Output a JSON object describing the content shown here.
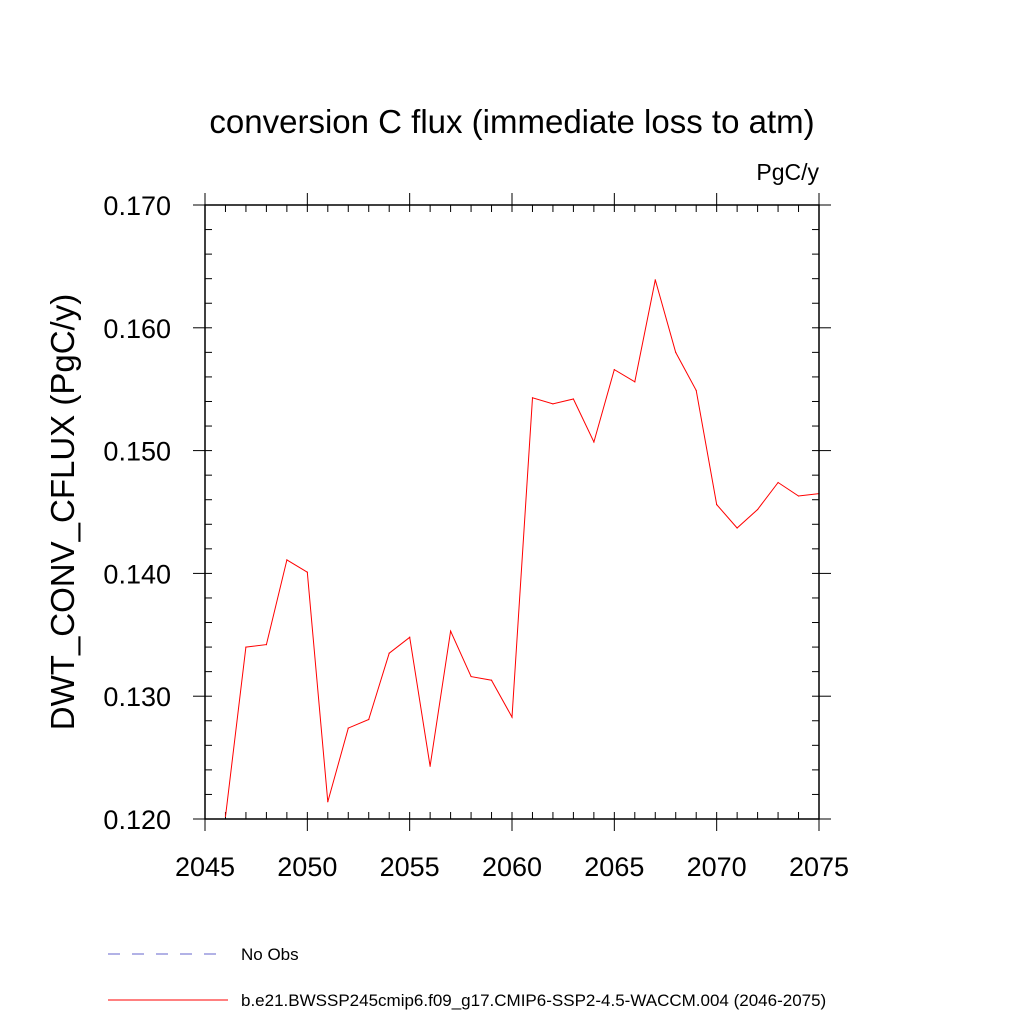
{
  "chart_data": {
    "type": "line",
    "title": "conversion C flux (immediate loss to atm)",
    "units_label": "PgC/y",
    "ylabel": "DWT_CONV_CFLUX  (PgC/y)",
    "xlabel": "",
    "xlim": [
      2045,
      2075
    ],
    "ylim": [
      0.12,
      0.17
    ],
    "x_ticks": [
      2045,
      2050,
      2055,
      2060,
      2065,
      2070,
      2075
    ],
    "x_tick_labels": [
      "2045",
      "2050",
      "2055",
      "2060",
      "2065",
      "2070",
      "2075"
    ],
    "y_ticks": [
      0.12,
      0.13,
      0.14,
      0.15,
      0.16,
      0.17
    ],
    "y_tick_labels": [
      "0.120",
      "0.130",
      "0.140",
      "0.150",
      "0.160",
      "0.170"
    ],
    "grid": false,
    "legend_position": "bottom-left",
    "series": [
      {
        "name": "b.e21.BWSSP245cmip6.f09_g17.CMIP6-SSP2-4.5-WACCM.004 (2046-2075)",
        "color": "#ff0000",
        "line_style": "solid",
        "x": [
          2046,
          2047,
          2048,
          2049,
          2050,
          2051,
          2052,
          2053,
          2054,
          2055,
          2056,
          2057,
          2058,
          2059,
          2060,
          2061,
          2062,
          2063,
          2064,
          2065,
          2066,
          2067,
          2068,
          2069,
          2070,
          2071,
          2072,
          2073,
          2074,
          2075
        ],
        "values": [
          0.1202,
          0.134,
          0.1342,
          0.1411,
          0.1401,
          0.1214,
          0.1274,
          0.1281,
          0.1335,
          0.1348,
          0.1243,
          0.1353,
          0.1316,
          0.1313,
          0.1283,
          0.1543,
          0.1538,
          0.1542,
          0.1507,
          0.1566,
          0.1556,
          0.1639,
          0.158,
          0.1549,
          0.1456,
          0.1437,
          0.1452,
          0.1474,
          0.1463,
          0.1465
        ]
      }
    ],
    "legend": [
      {
        "label": "No Obs",
        "color": "#6666cc",
        "line_style": "dashed"
      },
      {
        "label": "b.e21.BWSSP245cmip6.f09_g17.CMIP6-SSP2-4.5-WACCM.004 (2046-2075)",
        "color": "#ff0000",
        "line_style": "solid"
      }
    ]
  }
}
